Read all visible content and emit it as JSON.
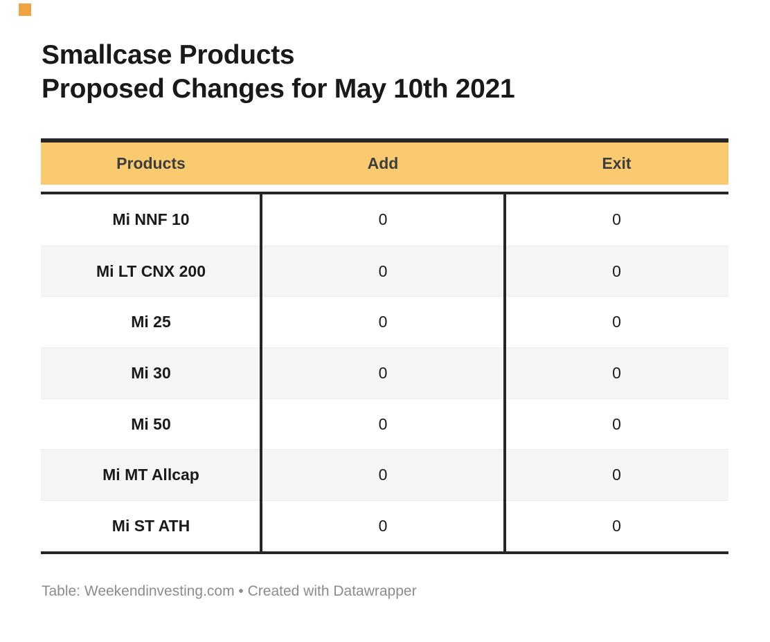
{
  "title": {
    "line1": "Smallcase Products",
    "line2": "Proposed Changes for May 10th 2021"
  },
  "chart_data": {
    "type": "table",
    "title": "Smallcase Products — Proposed Changes for May 10th 2021",
    "columns": [
      "Products",
      "Add",
      "Exit"
    ],
    "rows": [
      [
        "Mi NNF 10",
        0,
        0
      ],
      [
        "Mi LT CNX 200",
        0,
        0
      ],
      [
        "Mi 25",
        0,
        0
      ],
      [
        "Mi 30",
        0,
        0
      ],
      [
        "Mi 50",
        0,
        0
      ],
      [
        "Mi MT Allcap",
        0,
        0
      ],
      [
        "Mi ST ATH",
        0,
        0
      ]
    ],
    "layout_hints": {
      "zebra_striping": true,
      "header_fill": "#FACA70",
      "rule_color": "#262626",
      "stripe_color": "#F5F5F5"
    }
  },
  "footer": {
    "text": "Table: Weekendinvesting.com • Created with Datawrapper"
  },
  "colors": {
    "header_band": "#FACA70",
    "border_dark": "#262626",
    "stripe": "#F5F5F5",
    "title_text": "#191919",
    "body_text": "#1A1A1A",
    "header_text": "#3D3D3D",
    "footer_text": "#8C8C8C",
    "corner_marker": "#F0A441"
  }
}
